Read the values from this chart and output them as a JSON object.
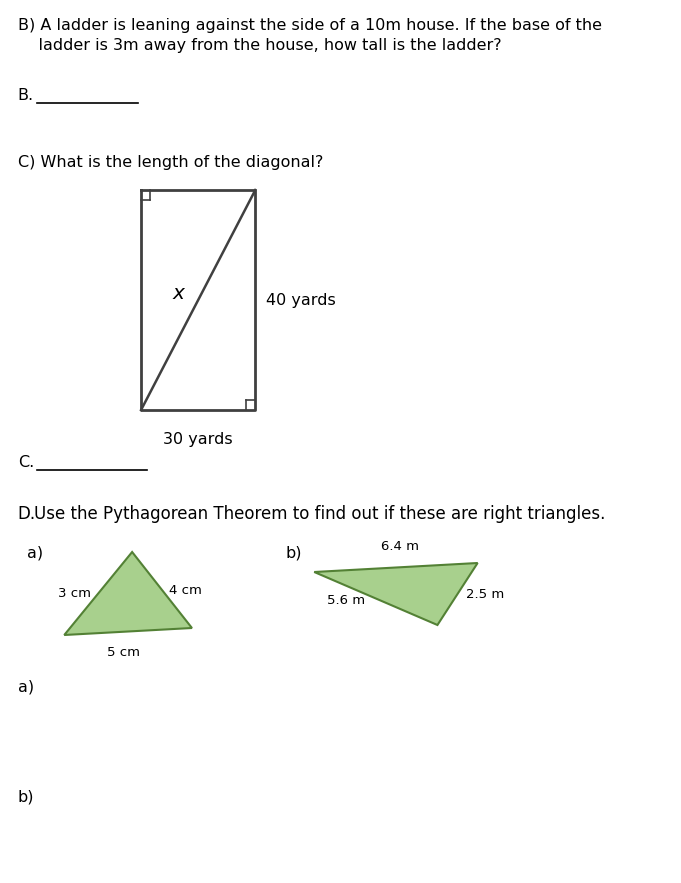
{
  "bg_color": "#ffffff",
  "text_color": "#000000",
  "section_B_text_line1": "B) A ladder is leaning against the side of a 10m house. If the base of the",
  "section_B_text_line2": "    ladder is 3m away from the house, how tall is the ladder?",
  "B_label": "B.",
  "section_C_text": "C) What is the length of the diagonal?",
  "rect_label_x": "x",
  "rect_label_30": "30 yards",
  "rect_label_40": "40 yards",
  "C_label": "C.",
  "section_D_text": "Use the Pythagorean Theorem to find out if these are right triangles.",
  "D_prefix": "D.",
  "tri_a_label": "a)",
  "tri_b_label": "b)",
  "tri_a_side1": "3 cm",
  "tri_a_side2": "4 cm",
  "tri_a_side3": "5 cm",
  "tri_b_side1": "6.4 m",
  "tri_b_side2": "5.6 m",
  "tri_b_side3": "2.5 m",
  "answer_a_label": "a)",
  "answer_b_label": "b)",
  "triangle_fill_color": "#a8d08d",
  "triangle_edge_color": "#538135",
  "rect_edge_color": "#404040",
  "font_size_body": 11.5,
  "font_size_small": 9.5,
  "font_size_D": 12
}
